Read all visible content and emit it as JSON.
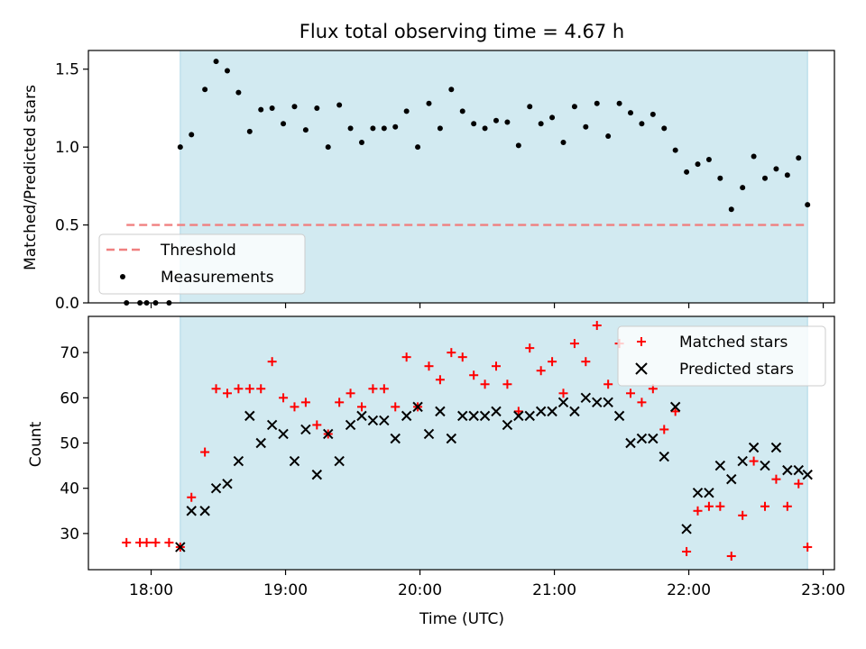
{
  "chart_data": [
    {
      "type": "scatter",
      "title": "Flux total observing time = 4.67 h",
      "ylabel": "Matched/Predicted stars",
      "xlabel": "",
      "ylim": [
        0,
        1.62
      ],
      "yticks": [
        0.0,
        0.5,
        1.0,
        1.5
      ],
      "ytick_labels": [
        "0.0",
        "0.5",
        "1.0",
        "1.5"
      ],
      "shaded_interval": {
        "start": "18:13",
        "end": "22:53",
        "color": "#add8e6"
      },
      "threshold": {
        "label": "Threshold",
        "value": 0.5,
        "start": "17:49",
        "end": "22:53",
        "color": "#f08080"
      },
      "legend": {
        "position": "lower-left",
        "entries": [
          "Threshold",
          "Measurements"
        ]
      },
      "series": [
        {
          "name": "Measurements",
          "marker": "dot",
          "color": "#000000",
          "x": [
            "17:49",
            "17:55",
            "17:58",
            "18:02",
            "18:08",
            "18:13",
            "18:18",
            "18:24",
            "18:29",
            "18:34",
            "18:39",
            "18:44",
            "18:49",
            "18:54",
            "18:59",
            "19:04",
            "19:09",
            "19:14",
            "19:19",
            "19:24",
            "19:29",
            "19:34",
            "19:39",
            "19:44",
            "19:49",
            "19:54",
            "19:59",
            "20:04",
            "20:09",
            "20:14",
            "20:19",
            "20:24",
            "20:29",
            "20:34",
            "20:39",
            "20:44",
            "20:49",
            "20:54",
            "20:59",
            "21:04",
            "21:09",
            "21:14",
            "21:19",
            "21:24",
            "21:29",
            "21:34",
            "21:39",
            "21:44",
            "21:49",
            "21:54",
            "21:59",
            "22:04",
            "22:09",
            "22:14",
            "22:19",
            "22:24",
            "22:29",
            "22:34",
            "22:39",
            "22:44",
            "22:49",
            "22:53"
          ],
          "y": [
            0.0,
            0.0,
            0.0,
            0.0,
            0.0,
            1.0,
            1.08,
            1.37,
            1.55,
            1.49,
            1.35,
            1.1,
            1.24,
            1.25,
            1.15,
            1.26,
            1.11,
            1.25,
            1.0,
            1.27,
            1.12,
            1.03,
            1.12,
            1.12,
            1.13,
            1.23,
            1.0,
            1.28,
            1.12,
            1.37,
            1.23,
            1.15,
            1.12,
            1.17,
            1.16,
            1.01,
            1.26,
            1.15,
            1.19,
            1.03,
            1.26,
            1.13,
            1.28,
            1.07,
            1.28,
            1.22,
            1.15,
            1.21,
            1.12,
            0.98,
            0.84,
            0.89,
            0.92,
            0.8,
            0.6,
            0.74,
            0.94,
            0.8,
            0.86,
            0.82,
            0.93,
            0.63
          ]
        }
      ]
    },
    {
      "type": "scatter",
      "title": "",
      "ylabel": "Count",
      "xlabel": "Time (UTC)",
      "ylim": [
        22,
        78
      ],
      "xlim": [
        "17:32",
        "23:05"
      ],
      "yticks": [
        30,
        40,
        50,
        60,
        70
      ],
      "ytick_labels": [
        "30",
        "40",
        "50",
        "60",
        "70"
      ],
      "xticks": [
        "18:00",
        "19:00",
        "20:00",
        "21:00",
        "22:00",
        "23:00"
      ],
      "xtick_labels": [
        "18:00",
        "19:00",
        "20:00",
        "21:00",
        "22:00",
        "23:00"
      ],
      "shaded_interval": {
        "start": "18:13",
        "end": "22:53",
        "color": "#add8e6"
      },
      "legend": {
        "position": "top-right",
        "entries": [
          "Matched stars",
          "Predicted stars"
        ]
      },
      "series": [
        {
          "name": "Matched stars",
          "marker": "plus",
          "color": "#ff0000",
          "x": [
            "17:49",
            "17:55",
            "17:58",
            "18:02",
            "18:08",
            "18:13",
            "18:18",
            "18:24",
            "18:29",
            "18:34",
            "18:39",
            "18:44",
            "18:49",
            "18:54",
            "18:59",
            "19:04",
            "19:09",
            "19:14",
            "19:19",
            "19:24",
            "19:29",
            "19:34",
            "19:39",
            "19:44",
            "19:49",
            "19:54",
            "19:59",
            "20:04",
            "20:09",
            "20:14",
            "20:19",
            "20:24",
            "20:29",
            "20:34",
            "20:39",
            "20:44",
            "20:49",
            "20:54",
            "20:59",
            "21:04",
            "21:09",
            "21:14",
            "21:19",
            "21:24",
            "21:29",
            "21:34",
            "21:39",
            "21:44",
            "21:49",
            "21:54",
            "21:59",
            "22:04",
            "22:09",
            "22:14",
            "22:19",
            "22:24",
            "22:29",
            "22:34",
            "22:39",
            "22:44",
            "22:49",
            "22:53"
          ],
          "y": [
            28,
            28,
            28,
            28,
            28,
            27,
            38,
            48,
            62,
            61,
            62,
            62,
            62,
            68,
            60,
            58,
            59,
            54,
            52,
            59,
            61,
            58,
            62,
            62,
            58,
            69,
            58,
            67,
            64,
            70,
            69,
            65,
            63,
            67,
            63,
            57,
            71,
            66,
            68,
            61,
            72,
            68,
            76,
            63,
            72,
            61,
            59,
            62,
            53,
            57,
            26,
            35,
            36,
            36,
            25,
            34,
            46,
            36,
            42,
            36,
            41,
            27
          ]
        },
        {
          "name": "Predicted stars",
          "marker": "x",
          "color": "#000000",
          "x": [
            "18:13",
            "18:18",
            "18:24",
            "18:29",
            "18:34",
            "18:39",
            "18:44",
            "18:49",
            "18:54",
            "18:59",
            "19:04",
            "19:09",
            "19:14",
            "19:19",
            "19:24",
            "19:29",
            "19:34",
            "19:39",
            "19:44",
            "19:49",
            "19:54",
            "19:59",
            "20:04",
            "20:09",
            "20:14",
            "20:19",
            "20:24",
            "20:29",
            "20:34",
            "20:39",
            "20:44",
            "20:49",
            "20:54",
            "20:59",
            "21:04",
            "21:09",
            "21:14",
            "21:19",
            "21:24",
            "21:29",
            "21:34",
            "21:39",
            "21:44",
            "21:49",
            "21:54",
            "21:59",
            "22:04",
            "22:09",
            "22:14",
            "22:19",
            "22:24",
            "22:29",
            "22:34",
            "22:39",
            "22:44",
            "22:49",
            "22:53"
          ],
          "y": [
            27,
            35,
            35,
            40,
            41,
            46,
            56,
            50,
            54,
            52,
            46,
            53,
            43,
            52,
            46,
            54,
            56,
            55,
            55,
            51,
            56,
            58,
            52,
            57,
            51,
            56,
            56,
            56,
            57,
            54,
            56,
            56,
            57,
            57,
            59,
            57,
            60,
            59,
            59,
            56,
            50,
            51,
            51,
            47,
            58,
            31,
            39,
            39,
            45,
            42,
            46,
            49,
            45,
            49,
            44,
            44,
            43
          ]
        }
      ]
    }
  ]
}
